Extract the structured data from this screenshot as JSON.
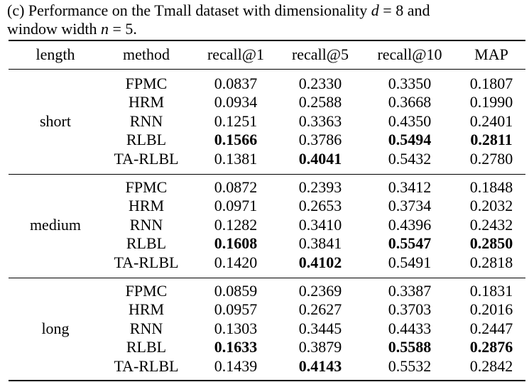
{
  "caption": {
    "prefix": "(c) Performance on the Tmall dataset with dimensionality",
    "d_var": "d",
    "d_eq": "= 8 and",
    "line2_prefix": "window width",
    "n_var": "n",
    "n_eq": "= 5."
  },
  "table": {
    "headers": [
      "length",
      "method",
      "recall@1",
      "recall@5",
      "recall@10",
      "MAP"
    ],
    "groups": [
      {
        "length": "short",
        "rows": [
          {
            "method": "FPMC",
            "values": [
              "0.0837",
              "0.2330",
              "0.3350",
              "0.1807"
            ],
            "bold": [
              false,
              false,
              false,
              false
            ]
          },
          {
            "method": "HRM",
            "values": [
              "0.0934",
              "0.2588",
              "0.3668",
              "0.1990"
            ],
            "bold": [
              false,
              false,
              false,
              false
            ]
          },
          {
            "method": "RNN",
            "values": [
              "0.1251",
              "0.3363",
              "0.4350",
              "0.2401"
            ],
            "bold": [
              false,
              false,
              false,
              false
            ]
          },
          {
            "method": "RLBL",
            "values": [
              "0.1566",
              "0.3786",
              "0.5494",
              "0.2811"
            ],
            "bold": [
              true,
              false,
              true,
              true
            ]
          },
          {
            "method": "TA-RLBL",
            "values": [
              "0.1381",
              "0.4041",
              "0.5432",
              "0.2780"
            ],
            "bold": [
              false,
              true,
              false,
              false
            ]
          }
        ]
      },
      {
        "length": "medium",
        "rows": [
          {
            "method": "FPMC",
            "values": [
              "0.0872",
              "0.2393",
              "0.3412",
              "0.1848"
            ],
            "bold": [
              false,
              false,
              false,
              false
            ]
          },
          {
            "method": "HRM",
            "values": [
              "0.0971",
              "0.2653",
              "0.3734",
              "0.2032"
            ],
            "bold": [
              false,
              false,
              false,
              false
            ]
          },
          {
            "method": "RNN",
            "values": [
              "0.1282",
              "0.3410",
              "0.4396",
              "0.2432"
            ],
            "bold": [
              false,
              false,
              false,
              false
            ]
          },
          {
            "method": "RLBL",
            "values": [
              "0.1608",
              "0.3841",
              "0.5547",
              "0.2850"
            ],
            "bold": [
              true,
              false,
              true,
              true
            ]
          },
          {
            "method": "TA-RLBL",
            "values": [
              "0.1420",
              "0.4102",
              "0.5491",
              "0.2818"
            ],
            "bold": [
              false,
              true,
              false,
              false
            ]
          }
        ]
      },
      {
        "length": "long",
        "rows": [
          {
            "method": "FPMC",
            "values": [
              "0.0859",
              "0.2369",
              "0.3387",
              "0.1831"
            ],
            "bold": [
              false,
              false,
              false,
              false
            ]
          },
          {
            "method": "HRM",
            "values": [
              "0.0957",
              "0.2627",
              "0.3703",
              "0.2016"
            ],
            "bold": [
              false,
              false,
              false,
              false
            ]
          },
          {
            "method": "RNN",
            "values": [
              "0.1303",
              "0.3445",
              "0.4433",
              "0.2447"
            ],
            "bold": [
              false,
              false,
              false,
              false
            ]
          },
          {
            "method": "RLBL",
            "values": [
              "0.1633",
              "0.3879",
              "0.5588",
              "0.2876"
            ],
            "bold": [
              true,
              false,
              true,
              true
            ]
          },
          {
            "method": "TA-RLBL",
            "values": [
              "0.1439",
              "0.4143",
              "0.5532",
              "0.2842"
            ],
            "bold": [
              false,
              true,
              false,
              false
            ]
          }
        ]
      }
    ]
  }
}
